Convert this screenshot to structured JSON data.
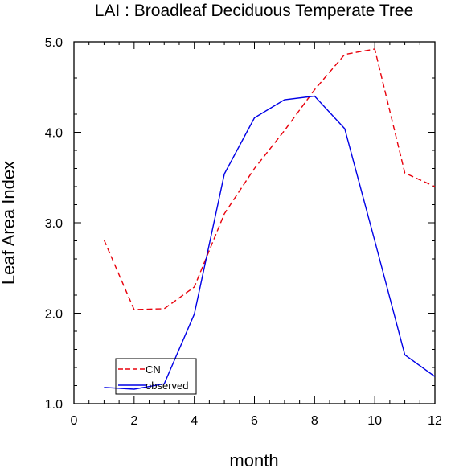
{
  "chart_data": {
    "type": "line",
    "title": "LAI : Broadleaf Deciduous Temperate Tree",
    "xlabel": "month",
    "ylabel": "Leaf Area Index",
    "xlim": [
      0,
      12
    ],
    "ylim": [
      1.0,
      5.0
    ],
    "x_ticks": [
      0,
      2,
      4,
      6,
      8,
      10,
      12
    ],
    "x_tick_labels": [
      "0",
      "2",
      "4",
      "6",
      "8",
      "10",
      "12"
    ],
    "y_ticks": [
      1.0,
      2.0,
      3.0,
      4.0,
      5.0
    ],
    "y_tick_labels": [
      "1.0",
      "2.0",
      "3.0",
      "4.0",
      "5.0"
    ],
    "grid": false,
    "legend_position": "bottom-left",
    "x": [
      1,
      2,
      3,
      4,
      5,
      6,
      7,
      8,
      9,
      10,
      11,
      12
    ],
    "series": [
      {
        "name": "CN",
        "color": "#e8000b",
        "style": "dashed",
        "values": [
          2.81,
          2.04,
          2.05,
          2.29,
          3.1,
          3.6,
          4.02,
          4.47,
          4.86,
          4.92,
          3.55,
          3.4
        ]
      },
      {
        "name": "observed",
        "color": "#0000e6",
        "style": "solid",
        "values": [
          1.18,
          1.16,
          1.22,
          1.99,
          3.54,
          4.16,
          4.36,
          4.4,
          4.04,
          2.8,
          1.54,
          1.3
        ]
      }
    ]
  }
}
